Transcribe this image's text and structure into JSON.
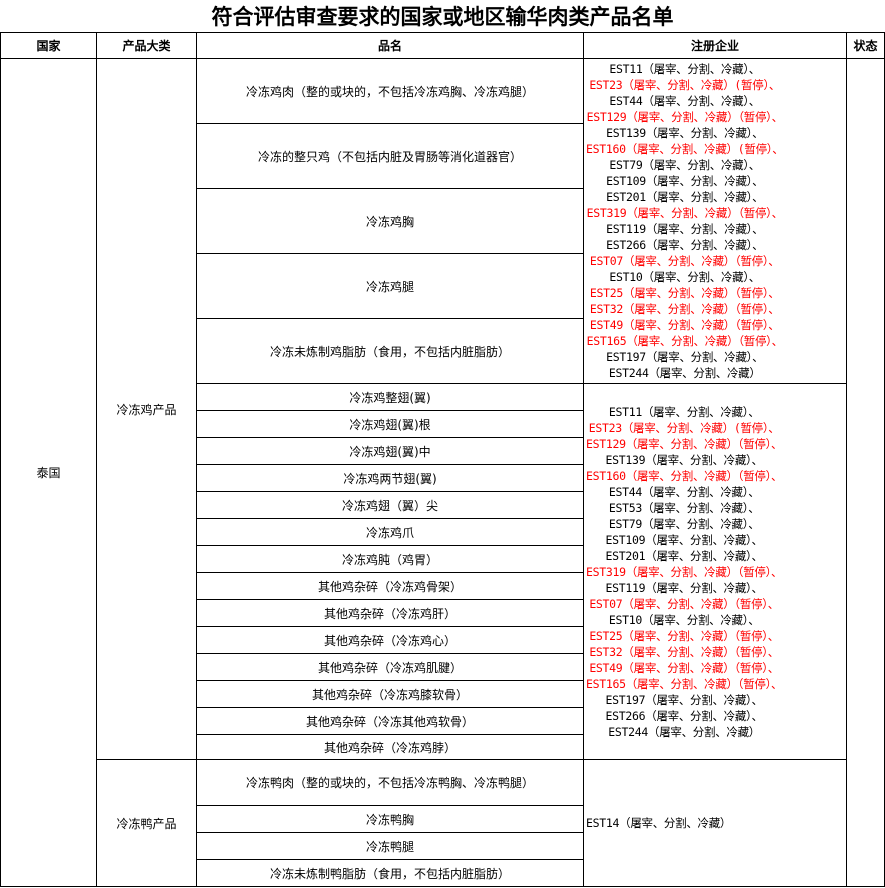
{
  "title": "符合评估审查要求的国家或地区输华肉类产品名单",
  "headers": {
    "country": "国家",
    "category": "产品大类",
    "product": "品名",
    "enterprise": "注册企业",
    "status": "状态"
  },
  "country": "泰国",
  "colors": {
    "suspended": "#ff0000",
    "normal": "#000000"
  },
  "groups": [
    {
      "category": "冷冻鸡产品",
      "products": [
        "冷冻鸡肉（整的或块的，不包括冷冻鸡胸、冷冻鸡腿）",
        "冷冻的整只鸡（不包括内脏及胃肠等消化道器官）",
        "冷冻鸡胸",
        "冷冻鸡腿",
        "冷冻未炼制鸡脂肪（食用，不包括内脏脂肪）"
      ],
      "enterprises": [
        {
          "text": "EST11（屠宰、分割、冷藏）、",
          "suspended": false
        },
        {
          "text": "EST23（屠宰、分割、冷藏）(暂停）、",
          "suspended": true
        },
        {
          "text": "EST44（屠宰、分割、冷藏）、",
          "suspended": false
        },
        {
          "text": "EST129（屠宰、分割、冷藏）（暂停）、",
          "suspended": true
        },
        {
          "text": "EST139（屠宰、分割、冷藏）、",
          "suspended": false
        },
        {
          "text": "EST160（屠宰、分割、冷藏）(暂停）、",
          "suspended": true
        },
        {
          "text": "EST79（屠宰、分割、冷藏）、",
          "suspended": false
        },
        {
          "text": "EST109（屠宰、分割、冷藏）、",
          "suspended": false
        },
        {
          "text": "EST201（屠宰、分割、冷藏）、",
          "suspended": false
        },
        {
          "text": "EST319（屠宰、分割、冷藏）（暂停）、",
          "suspended": true
        },
        {
          "text": "EST119（屠宰、分割、冷藏）、",
          "suspended": false
        },
        {
          "text": "EST266（屠宰、分割、冷藏）、",
          "suspended": false
        },
        {
          "text": "EST07（屠宰、分割、冷藏）（暂停）、",
          "suspended": true
        },
        {
          "text": "EST10（屠宰、分割、冷藏）、",
          "suspended": false
        },
        {
          "text": "EST25（屠宰、分割、冷藏）（暂停）、",
          "suspended": true
        },
        {
          "text": "EST32（屠宰、分割、冷藏）（暂停）、",
          "suspended": true
        },
        {
          "text": "EST49（屠宰、分割、冷藏）（暂停）、",
          "suspended": true
        },
        {
          "text": "EST165（屠宰、分割、冷藏）（暂停）、",
          "suspended": true
        },
        {
          "text": "EST197（屠宰、分割、冷藏）、",
          "suspended": false
        },
        {
          "text": "EST244（屠宰、分割、冷藏）",
          "suspended": false
        }
      ]
    },
    {
      "category": "",
      "products": [
        "冷冻鸡整翅(翼)",
        "冷冻鸡翅(翼)根",
        "冷冻鸡翅(翼)中",
        "冷冻鸡两节翅(翼)",
        "冷冻鸡翅（翼）尖",
        "冷冻鸡爪",
        "冷冻鸡肫（鸡胃）",
        "其他鸡杂碎（冷冻鸡骨架）",
        "其他鸡杂碎（冷冻鸡肝）",
        "其他鸡杂碎（冷冻鸡心）",
        "其他鸡杂碎（冷冻鸡肌腱）",
        "其他鸡杂碎（冷冻鸡膝软骨）",
        "其他鸡杂碎（冷冻其他鸡软骨）",
        "其他鸡杂碎（冷冻鸡脖）"
      ],
      "enterprises": [
        {
          "text": "EST11（屠宰、分割、冷藏）、",
          "suspended": false
        },
        {
          "text": "EST23（屠宰、分割、冷藏）(暂停）、",
          "suspended": true
        },
        {
          "text": "EST129（屠宰、分割、冷藏）（暂停）、",
          "suspended": true
        },
        {
          "text": "EST139（屠宰、分割、冷藏）、",
          "suspended": false
        },
        {
          "text": "EST160（屠宰、分割、冷藏）（暂停）、",
          "suspended": true
        },
        {
          "text": "EST44（屠宰、分割、冷藏）、",
          "suspended": false
        },
        {
          "text": "EST53（屠宰、分割、冷藏）、",
          "suspended": false
        },
        {
          "text": "EST79（屠宰、分割、冷藏）、",
          "suspended": false
        },
        {
          "text": "EST109（屠宰、分割、冷藏）、",
          "suspended": false
        },
        {
          "text": "EST201（屠宰、分割、冷藏）、",
          "suspended": false
        },
        {
          "text": "EST319（屠宰、分割、冷藏）（暂停）、",
          "suspended": true
        },
        {
          "text": "EST119（屠宰、分割、冷藏）、",
          "suspended": false
        },
        {
          "text": "EST07（屠宰、分割、冷藏）（暂停）、",
          "suspended": true
        },
        {
          "text": "EST10（屠宰、分割、冷藏）、",
          "suspended": false
        },
        {
          "text": "EST25（屠宰、分割、冷藏）（暂停）、",
          "suspended": true
        },
        {
          "text": "EST32（屠宰、分割、冷藏）（暂停）、",
          "suspended": true
        },
        {
          "text": "EST49（屠宰、分割、冷藏）（暂停）、",
          "suspended": true
        },
        {
          "text": "EST165（屠宰、分割、冷藏）（暂停）、",
          "suspended": true
        },
        {
          "text": "EST197（屠宰、分割、冷藏）、",
          "suspended": false
        },
        {
          "text": "EST266（屠宰、分割、冷藏）、",
          "suspended": false
        },
        {
          "text": "EST244（屠宰、分割、冷藏）",
          "suspended": false
        }
      ]
    },
    {
      "category": "冷冻鸭产品",
      "products": [
        "冷冻鸭肉（整的或块的，不包括冷冻鸭胸、冷冻鸭腿）",
        "冷冻鸭胸",
        "冷冻鸭腿",
        "冷冻未炼制鸭脂肪（食用，不包括内脏脂肪）"
      ],
      "enterprises": [
        {
          "text": "EST14（屠宰、分割、冷藏）",
          "suspended": false
        }
      ]
    }
  ]
}
